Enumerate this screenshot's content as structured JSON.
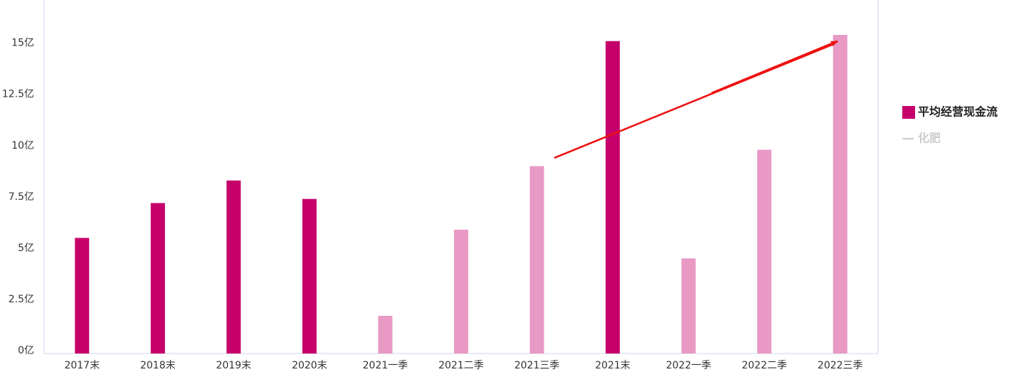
{
  "chart_data": {
    "type": "bar",
    "categories": [
      "2017末",
      "2018末",
      "2019末",
      "2020末",
      "2021一季",
      "2021二季",
      "2021三季",
      "2021末",
      "2022一季",
      "2022二季",
      "2022三季"
    ],
    "series": [
      {
        "name": "平均经营现金流",
        "color": "#c6006b",
        "values": [
          5.5,
          7.2,
          8.3,
          7.4,
          1.7,
          5.9,
          9.0,
          15.1,
          4.5,
          9.8,
          15.4
        ],
        "colors": [
          "#c6006b",
          "#c6006b",
          "#c6006b",
          "#c6006b",
          "#e899c4",
          "#e899c4",
          "#e899c4",
          "#c6006b",
          "#e899c4",
          "#e899c4",
          "#e899c4"
        ]
      }
    ],
    "hidden_series": [
      {
        "name": "化肥",
        "color": "#cccccc"
      }
    ],
    "ylim": [
      0,
      17
    ],
    "yticks": [
      {
        "value": 0,
        "label": "0亿"
      },
      {
        "value": 2.5,
        "label": "2.5亿"
      },
      {
        "value": 5,
        "label": "5亿"
      },
      {
        "value": 7.5,
        "label": "7.5亿"
      },
      {
        "value": 10,
        "label": "10亿"
      },
      {
        "value": 12.5,
        "label": "12.5亿"
      },
      {
        "value": 15,
        "label": "15亿"
      }
    ],
    "grid": false
  }
}
